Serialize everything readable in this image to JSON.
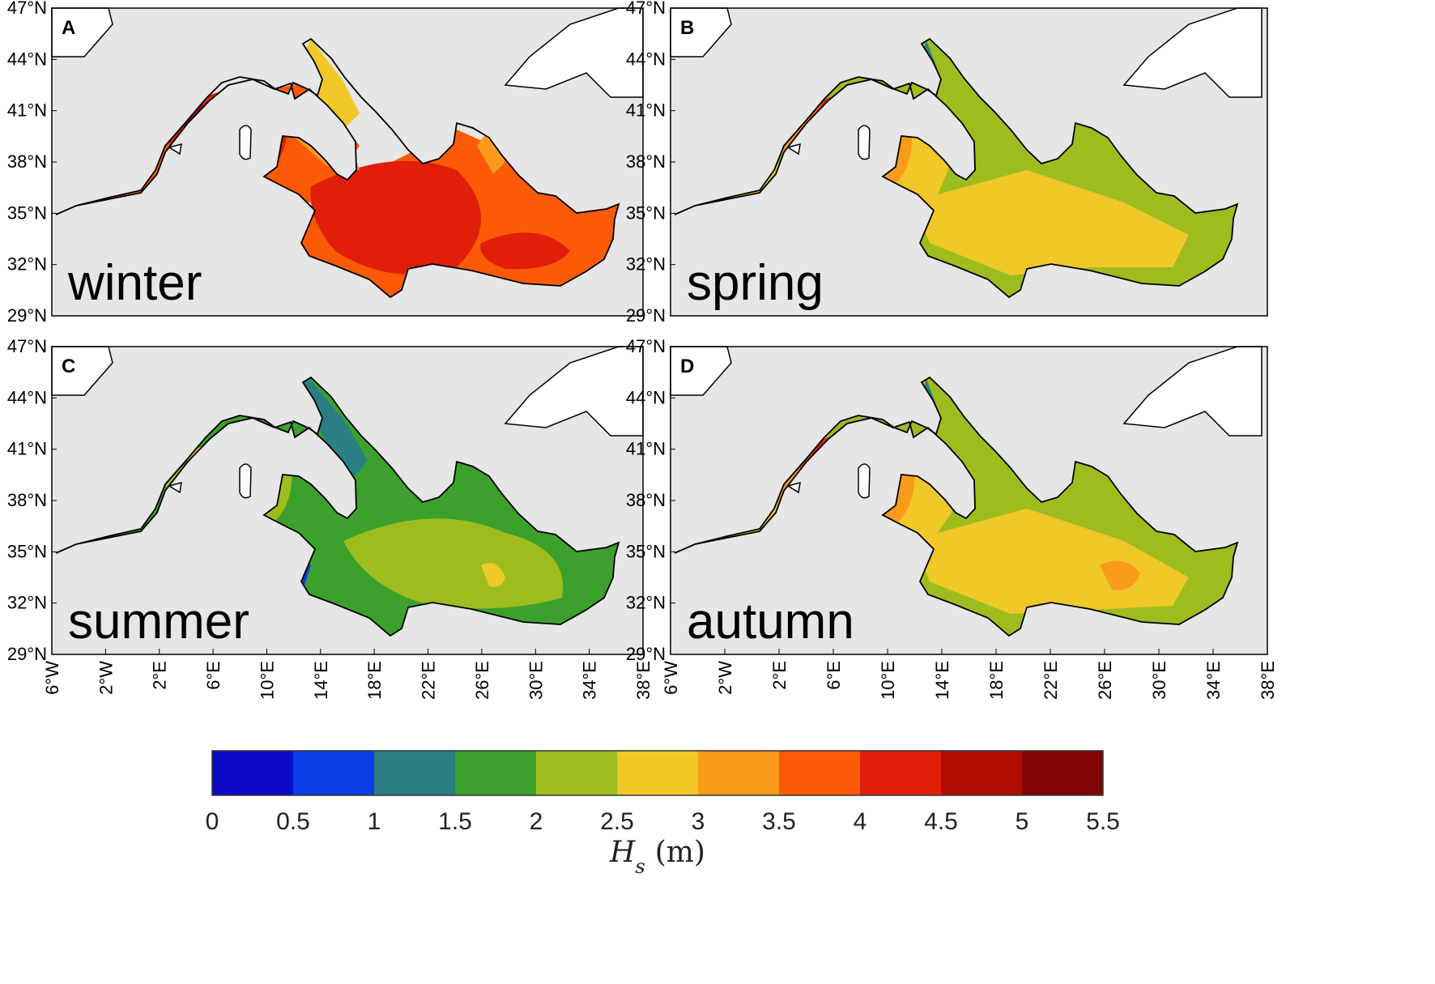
{
  "panels": [
    {
      "letter": "A",
      "season": "winter"
    },
    {
      "letter": "B",
      "season": "spring"
    },
    {
      "letter": "C",
      "season": "summer"
    },
    {
      "letter": "D",
      "season": "autumn"
    }
  ],
  "lat_ticks": [
    "47°N",
    "44°N",
    "41°N",
    "38°N",
    "35°N",
    "32°N",
    "29°N"
  ],
  "lon_ticks": [
    "6°W",
    "2°W",
    "2°E",
    "6°E",
    "10°E",
    "14°E",
    "18°E",
    "22°E",
    "26°E",
    "30°E",
    "34°E",
    "38°E"
  ],
  "colorbar": {
    "ticks": [
      "0",
      "0.5",
      "1",
      "1.5",
      "2",
      "2.5",
      "3",
      "3.5",
      "4",
      "4.5",
      "5",
      "5.5"
    ],
    "colors": [
      "#0a0ac8",
      "#0a3ee6",
      "#2a7e84",
      "#3ca02c",
      "#9dbd1f",
      "#f0c828",
      "#fb9b1c",
      "#fc5a06",
      "#e01e0a",
      "#b00e04",
      "#820404"
    ],
    "label_symbol": "H",
    "label_sub": "s",
    "label_unit": "(m)"
  },
  "colors": {
    "sea_background": "#e6e6e6",
    "land": "#ffffff"
  }
}
